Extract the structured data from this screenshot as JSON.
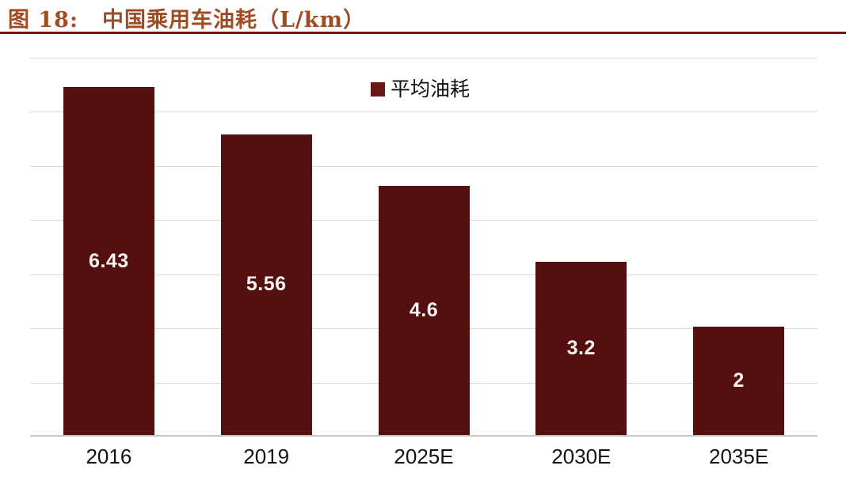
{
  "header": {
    "figure_label": "图 18:",
    "title": "中国乘用车油耗（L/km）"
  },
  "legend": {
    "label": "平均油耗"
  },
  "colors": {
    "bar": "#541011",
    "legend_swatch": "#6B1516",
    "title": "#A14B22",
    "divider": "#74130F",
    "gridline": "#DBDBDB",
    "axis_line": "#C6C6C6",
    "value_label": "#FBF4F0",
    "tick_label": "#141414",
    "background": "#FFFFFF"
  },
  "chart_data": {
    "type": "bar",
    "title": "中国乘用车油耗（L/km）",
    "series_name": "平均油耗",
    "categories": [
      "2016",
      "2019",
      "2025E",
      "2030E",
      "2035E"
    ],
    "values": [
      6.43,
      5.56,
      4.6,
      3.2,
      2
    ],
    "value_labels": [
      "6.43",
      "5.56",
      "4.6",
      "3.2",
      "2"
    ],
    "xlabel": "",
    "ylabel": "",
    "ylim": [
      0,
      7
    ],
    "grid_step": 1,
    "grid": true,
    "y_axis_labels_visible": false,
    "legend_position": "top-center",
    "value_label_position": "center-of-bar"
  }
}
